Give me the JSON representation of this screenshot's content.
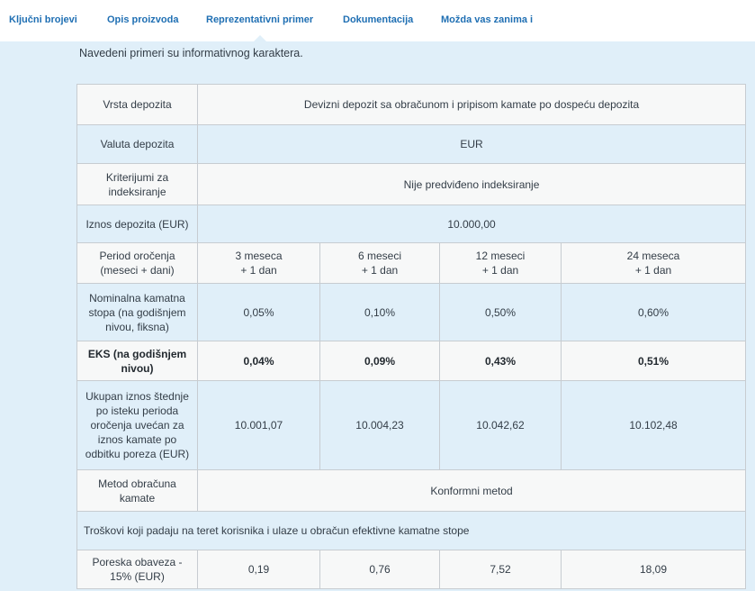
{
  "tabs": [
    {
      "label": "Ključni brojevi"
    },
    {
      "label": "Opis proizvoda"
    },
    {
      "label": "Reprezentativni primer"
    },
    {
      "label": "Dokumentacija"
    },
    {
      "label": "Možda vas zanima i"
    }
  ],
  "active_tab": "Reprezentativni primer",
  "intro_text": "Navedeni primeri su informativnog karaktera.",
  "table": {
    "deposit_type": {
      "label": "Vrsta depozita",
      "value": "Devizni depozit sa obračunom i pripisom kamate po dospeću depozita"
    },
    "currency": {
      "label": "Valuta depozita",
      "value": "EUR"
    },
    "indexation": {
      "label": "Kriterijumi za indeksiranje",
      "value": "Nije predviđeno indeksiranje"
    },
    "amount": {
      "label": "Iznos depozita (EUR)",
      "value": "10.000,00"
    },
    "period": {
      "label": "Period oročenja (meseci + dani)",
      "values": [
        {
          "line1": "3 meseca",
          "line2": "+ 1 dan"
        },
        {
          "line1": "6 meseci",
          "line2": "+ 1 dan"
        },
        {
          "line1": "12 meseci",
          "line2": "+ 1 dan"
        },
        {
          "line1": "24 meseca",
          "line2": "+ 1 dan"
        }
      ]
    },
    "nominal_rate": {
      "label": "Nominalna kamatna stopa (na godišnjem nivou, fiksna)",
      "values": [
        "0,05%",
        "0,10%",
        "0,50%",
        "0,60%"
      ]
    },
    "eks": {
      "label": "EKS (na godišnjem nivou)",
      "values": [
        "0,04%",
        "0,09%",
        "0,43%",
        "0,51%"
      ]
    },
    "total_savings": {
      "label": "Ukupan iznos štednje po isteku perioda oročenja uvećan za iznos kamate po odbitku poreza (EUR)",
      "values": [
        "10.001,07",
        "10.004,23",
        "10.042,62",
        "10.102,48"
      ]
    },
    "method": {
      "label": "Metod obračuna kamate",
      "value": "Konformni metod"
    },
    "costs_header": "Troškovi koji padaju na teret korisnika i ulaze u obračun efektivne kamatne stope",
    "tax": {
      "label": "Poreska obaveza - 15% (EUR)",
      "values": [
        "0,19",
        "0,76",
        "7,52",
        "18,09"
      ]
    }
  }
}
